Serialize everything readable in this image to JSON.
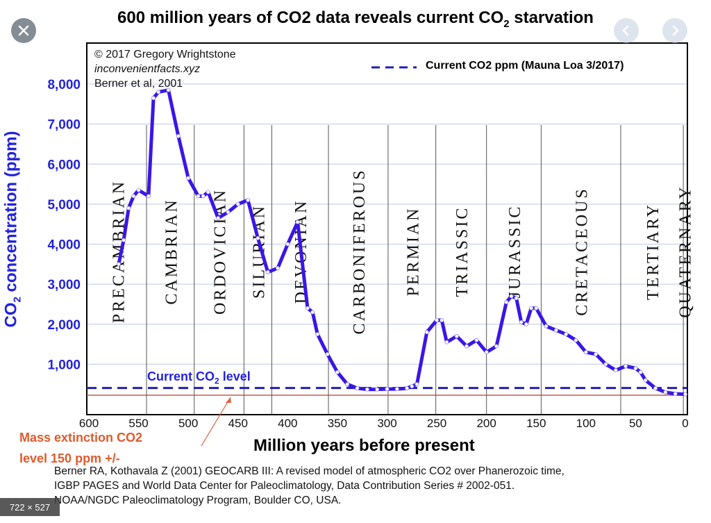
{
  "viewer": {
    "close_icon": "close-icon",
    "prev_icon": "chevron-left-icon",
    "next_icon": "chevron-right-icon",
    "size_label": "722 × 527"
  },
  "chart_data": {
    "type": "line",
    "title_prefix": "600 million years of CO2 data reveals current CO",
    "title_sub": "2",
    "title_suffix": " starvation",
    "xlabel": "Million years before present",
    "ylabel_prefix": "CO",
    "ylabel_sub": "2",
    "ylabel_suffix": " concentration (ppm)",
    "xlim": [
      600,
      0
    ],
    "ylim": [
      0,
      8400
    ],
    "x_ticks": [
      600,
      550,
      500,
      450,
      400,
      350,
      300,
      250,
      200,
      150,
      100,
      50,
      0
    ],
    "y_ticks": [
      1000,
      2000,
      3000,
      4000,
      5000,
      6000,
      7000,
      8000
    ],
    "y_tick_labels": [
      "1,000",
      "2,000",
      "3,000",
      "4,000",
      "5,000",
      "6,000",
      "7,000",
      "8,000"
    ],
    "grid": "horizontal",
    "credit_lines": [
      "© 2017 Gregory Wrightstone",
      "inconvenientfacts.xyz",
      "Berner et al, 2001"
    ],
    "series": [
      {
        "name": "Berner et al, 2001",
        "color": "#3b16e6",
        "x": [
          570,
          565,
          560,
          555,
          550,
          540,
          535,
          530,
          520,
          510,
          500,
          490,
          485,
          480,
          470,
          460,
          450,
          440,
          430,
          420,
          410,
          400,
          390,
          380,
          375,
          370,
          360,
          350,
          340,
          330,
          320,
          310,
          300,
          290,
          280,
          275,
          270,
          260,
          250,
          245,
          240,
          230,
          220,
          210,
          200,
          190,
          180,
          175,
          170,
          165,
          160,
          155,
          150,
          140,
          130,
          120,
          110,
          100,
          90,
          80,
          70,
          60,
          50,
          45,
          40,
          30,
          20,
          10,
          0
        ],
        "y": [
          3500,
          4100,
          4900,
          5200,
          5350,
          5200,
          7650,
          7800,
          7850,
          6700,
          5650,
          5200,
          5200,
          5300,
          4650,
          4800,
          5000,
          5100,
          4150,
          3300,
          3400,
          4000,
          4550,
          2400,
          2300,
          1750,
          1250,
          800,
          500,
          400,
          370,
          370,
          380,
          380,
          400,
          450,
          500,
          1800,
          2100,
          2100,
          1550,
          1700,
          1450,
          1600,
          1300,
          1450,
          2550,
          2700,
          2650,
          2050,
          2000,
          2400,
          2400,
          1950,
          1850,
          1750,
          1600,
          1300,
          1250,
          1000,
          850,
          950,
          900,
          800,
          600,
          400,
          300,
          260,
          250
        ]
      }
    ],
    "reference_lines": [
      {
        "name": "Current CO2 ppm (Mauna Loa 3/2017)",
        "y": 405,
        "style": "dashed",
        "color": "#1f1fb3",
        "label_prefix": "Current CO",
        "label_sub": "2",
        "label_suffix": " level"
      },
      {
        "name": "Mass extinction CO2 level 150 ppm +/-",
        "y": 150,
        "style": "solid",
        "color": "#c0392b"
      }
    ],
    "mass_extinction_label_line1": "Mass extinction CO2",
    "mass_extinction_label_line2": "level 150 ppm +/-",
    "periods": [
      {
        "name": "PRECAMBRIAN",
        "start": 600,
        "end": 542
      },
      {
        "name": "CAMBRIAN",
        "start": 542,
        "end": 494
      },
      {
        "name": "ORDOVICIAN",
        "start": 494,
        "end": 444
      },
      {
        "name": "SILURIAN",
        "start": 444,
        "end": 416
      },
      {
        "name": "DEVONIAN",
        "start": 416,
        "end": 359
      },
      {
        "name": "CARBONIFEROUS",
        "start": 359,
        "end": 299
      },
      {
        "name": "PERMIAN",
        "start": 299,
        "end": 251
      },
      {
        "name": "TRIASSIC",
        "start": 251,
        "end": 200
      },
      {
        "name": "JURASSIC",
        "start": 200,
        "end": 145
      },
      {
        "name": "CRETACEOUS",
        "start": 145,
        "end": 65
      },
      {
        "name": "TERTIARY",
        "start": 65,
        "end": 2
      },
      {
        "name": "QUATERNARY",
        "start": 2,
        "end": 0
      }
    ],
    "legend": {
      "position": "top-right"
    }
  },
  "citation": [
    "Berner RA, Kothavala Z (2001) GEOCARB III: A revised model of atmospheric CO2 over Phanerozoic time,",
    "IGBP PAGES and World Data Center for Paleoclimatology, Data Contribution Series # 2002-051.",
    "NOAA/NGDC Paleoclimatology Program, Boulder CO, USA."
  ]
}
